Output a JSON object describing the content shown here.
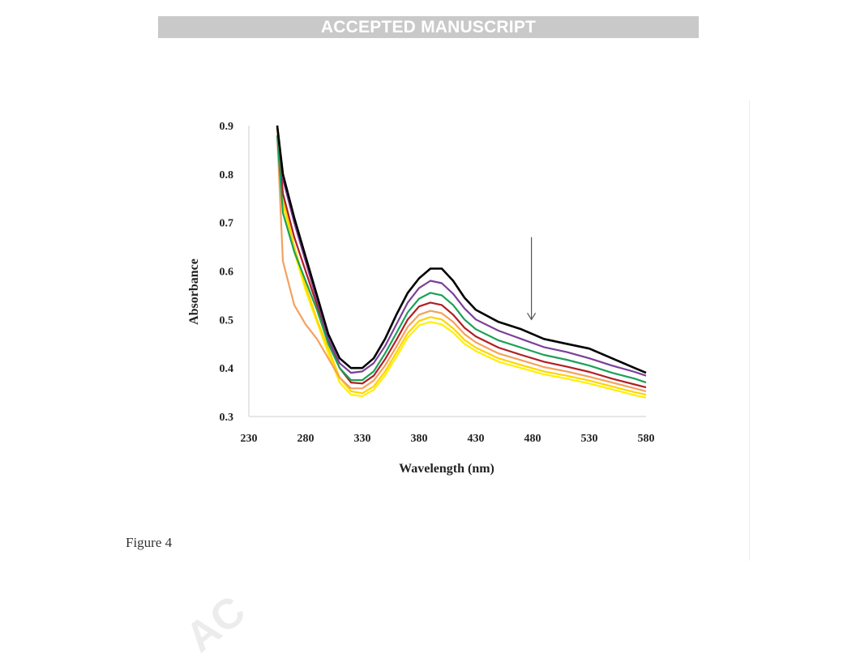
{
  "header": {
    "banner_text": "ACCEPTED MANUSCRIPT"
  },
  "figure": {
    "caption": "Figure 4"
  },
  "watermark": {
    "text": "AC"
  },
  "colors": {
    "banner_bg": "#c9c9c9",
    "axis": "#cfcfcf",
    "arrow": "#555555"
  },
  "chart_data": {
    "type": "line",
    "title": "",
    "xlabel": "Wavelength (nm)",
    "ylabel": "Absorbance",
    "xlim": [
      230,
      580
    ],
    "ylim": [
      0.3,
      0.9
    ],
    "xticks": [
      230,
      280,
      330,
      380,
      430,
      480,
      530,
      580
    ],
    "yticks": [
      0.3,
      0.4,
      0.5,
      0.6,
      0.7,
      0.8,
      0.9
    ],
    "ytick_labels": [
      "0.3",
      "0.4",
      "0.5",
      "0.6",
      "0.7",
      "0.8",
      "0.9"
    ],
    "grid": false,
    "legend": "none",
    "annotations": [
      {
        "type": "arrow",
        "direction": "down",
        "x": 479,
        "y_from": 0.67,
        "y_to": 0.5
      }
    ],
    "x": [
      255,
      260,
      270,
      280,
      290,
      300,
      310,
      320,
      330,
      340,
      350,
      360,
      370,
      380,
      390,
      400,
      410,
      420,
      430,
      450,
      470,
      490,
      510,
      530,
      550,
      570,
      580
    ],
    "series": [
      {
        "color": "#000000",
        "values": [
          0.9,
          0.8,
          0.71,
          0.63,
          0.55,
          0.47,
          0.42,
          0.4,
          0.4,
          0.42,
          0.46,
          0.51,
          0.555,
          0.585,
          0.605,
          0.605,
          0.58,
          0.545,
          0.52,
          0.495,
          0.48,
          0.46,
          0.45,
          0.44,
          0.42,
          0.4,
          0.39
        ]
      },
      {
        "color": "#7b3f98",
        "values": [
          0.9,
          0.79,
          0.7,
          0.62,
          0.54,
          0.46,
          0.41,
          0.39,
          0.393,
          0.41,
          0.445,
          0.49,
          0.535,
          0.565,
          0.58,
          0.575,
          0.553,
          0.523,
          0.5,
          0.477,
          0.46,
          0.443,
          0.433,
          0.42,
          0.405,
          0.392,
          0.384
        ]
      },
      {
        "color": "#1aa158",
        "values": [
          0.88,
          0.72,
          0.64,
          0.58,
          0.52,
          0.45,
          0.4,
          0.375,
          0.375,
          0.393,
          0.43,
          0.472,
          0.515,
          0.543,
          0.555,
          0.55,
          0.53,
          0.5,
          0.48,
          0.457,
          0.442,
          0.427,
          0.417,
          0.405,
          0.39,
          0.378,
          0.37
        ]
      },
      {
        "color": "#b01f24",
        "values": [
          0.9,
          0.76,
          0.67,
          0.6,
          0.53,
          0.455,
          0.4,
          0.37,
          0.368,
          0.384,
          0.418,
          0.458,
          0.5,
          0.527,
          0.535,
          0.53,
          0.51,
          0.483,
          0.465,
          0.442,
          0.427,
          0.413,
          0.403,
          0.392,
          0.378,
          0.366,
          0.36
        ]
      },
      {
        "color": "#f4a15d",
        "values": [
          0.88,
          0.62,
          0.53,
          0.49,
          0.46,
          0.42,
          0.38,
          0.358,
          0.358,
          0.374,
          0.405,
          0.444,
          0.485,
          0.51,
          0.518,
          0.513,
          0.495,
          0.47,
          0.453,
          0.43,
          0.416,
          0.402,
          0.393,
          0.382,
          0.37,
          0.358,
          0.352
        ]
      },
      {
        "color": "#ffd400",
        "values": [
          0.9,
          0.75,
          0.65,
          0.57,
          0.5,
          0.44,
          0.38,
          0.352,
          0.348,
          0.362,
          0.393,
          0.432,
          0.472,
          0.497,
          0.505,
          0.5,
          0.482,
          0.458,
          0.442,
          0.42,
          0.406,
          0.393,
          0.384,
          0.374,
          0.362,
          0.35,
          0.345
        ]
      },
      {
        "color": "#ffef00",
        "values": [
          0.9,
          0.74,
          0.64,
          0.56,
          0.495,
          0.43,
          0.37,
          0.345,
          0.342,
          0.355,
          0.385,
          0.423,
          0.463,
          0.488,
          0.495,
          0.49,
          0.473,
          0.45,
          0.435,
          0.413,
          0.4,
          0.387,
          0.378,
          0.368,
          0.356,
          0.344,
          0.339
        ]
      }
    ]
  }
}
